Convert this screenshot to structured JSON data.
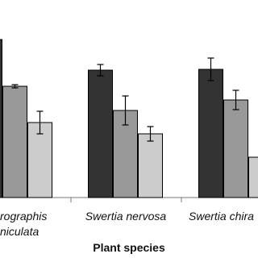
{
  "chart_data": {
    "type": "bar",
    "x_label": "Plant species",
    "categories": [
      [
        "rographis",
        "niculata"
      ],
      [
        "Swertia nervosa"
      ],
      [
        "Swertia chira"
      ]
    ],
    "series": [
      {
        "color": "#333333",
        "values": [
          98,
          79,
          79.5
        ],
        "errors": [
          null,
          3.5,
          7
        ]
      },
      {
        "color": "#999999",
        "values": [
          69,
          54,
          60.5
        ],
        "errors": [
          1,
          9,
          6
        ]
      },
      {
        "color": "#cccccc",
        "values": [
          46.5,
          39.5,
          25
        ],
        "errors": [
          7,
          4.5,
          null
        ]
      }
    ],
    "ylim": [
      0,
      100
    ]
  }
}
